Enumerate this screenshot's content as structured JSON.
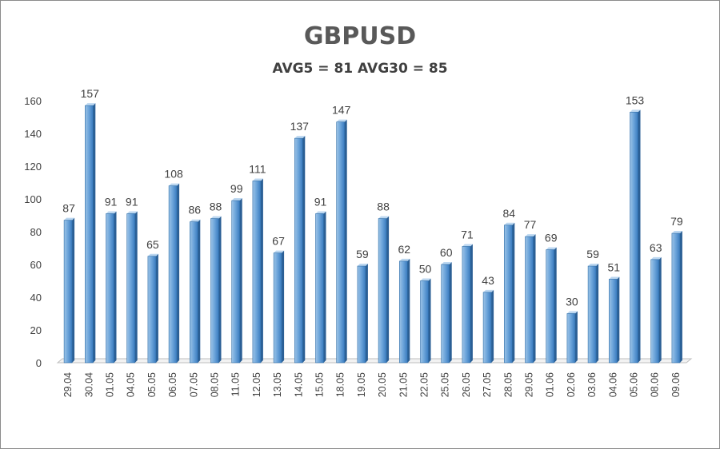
{
  "chart_data": {
    "type": "bar",
    "title": "GBPUSD",
    "subtitle": "AVG5 = 81 AVG30 = 85",
    "xlabel": "",
    "ylabel": "",
    "ylim": [
      0,
      160
    ],
    "yticks": [
      0,
      20,
      40,
      60,
      80,
      100,
      120,
      140,
      160
    ],
    "grid": false,
    "legend": "none",
    "categories": [
      "29.04",
      "30.04",
      "01.05",
      "04.05",
      "05.05",
      "06.05",
      "07.05",
      "08.05",
      "11.05",
      "12.05",
      "13.05",
      "14.05",
      "15.05",
      "18.05",
      "19.05",
      "20.05",
      "21.05",
      "22.05",
      "25.05",
      "26.05",
      "27.05",
      "28.05",
      "29.05",
      "01.06",
      "02.06",
      "03.06",
      "04.06",
      "05.06",
      "08.06",
      "09.06"
    ],
    "values": [
      87,
      157,
      91,
      91,
      65,
      108,
      86,
      88,
      99,
      111,
      67,
      137,
      91,
      147,
      59,
      88,
      62,
      50,
      60,
      71,
      43,
      84,
      77,
      69,
      30,
      59,
      51,
      153,
      63,
      79
    ],
    "colors": {
      "bar_light": "#9cc3e6",
      "bar_dark": "#3a7bbf",
      "bar_edge": "#2e6da8",
      "axis": "#bfbfbf",
      "text": "#404040"
    }
  }
}
